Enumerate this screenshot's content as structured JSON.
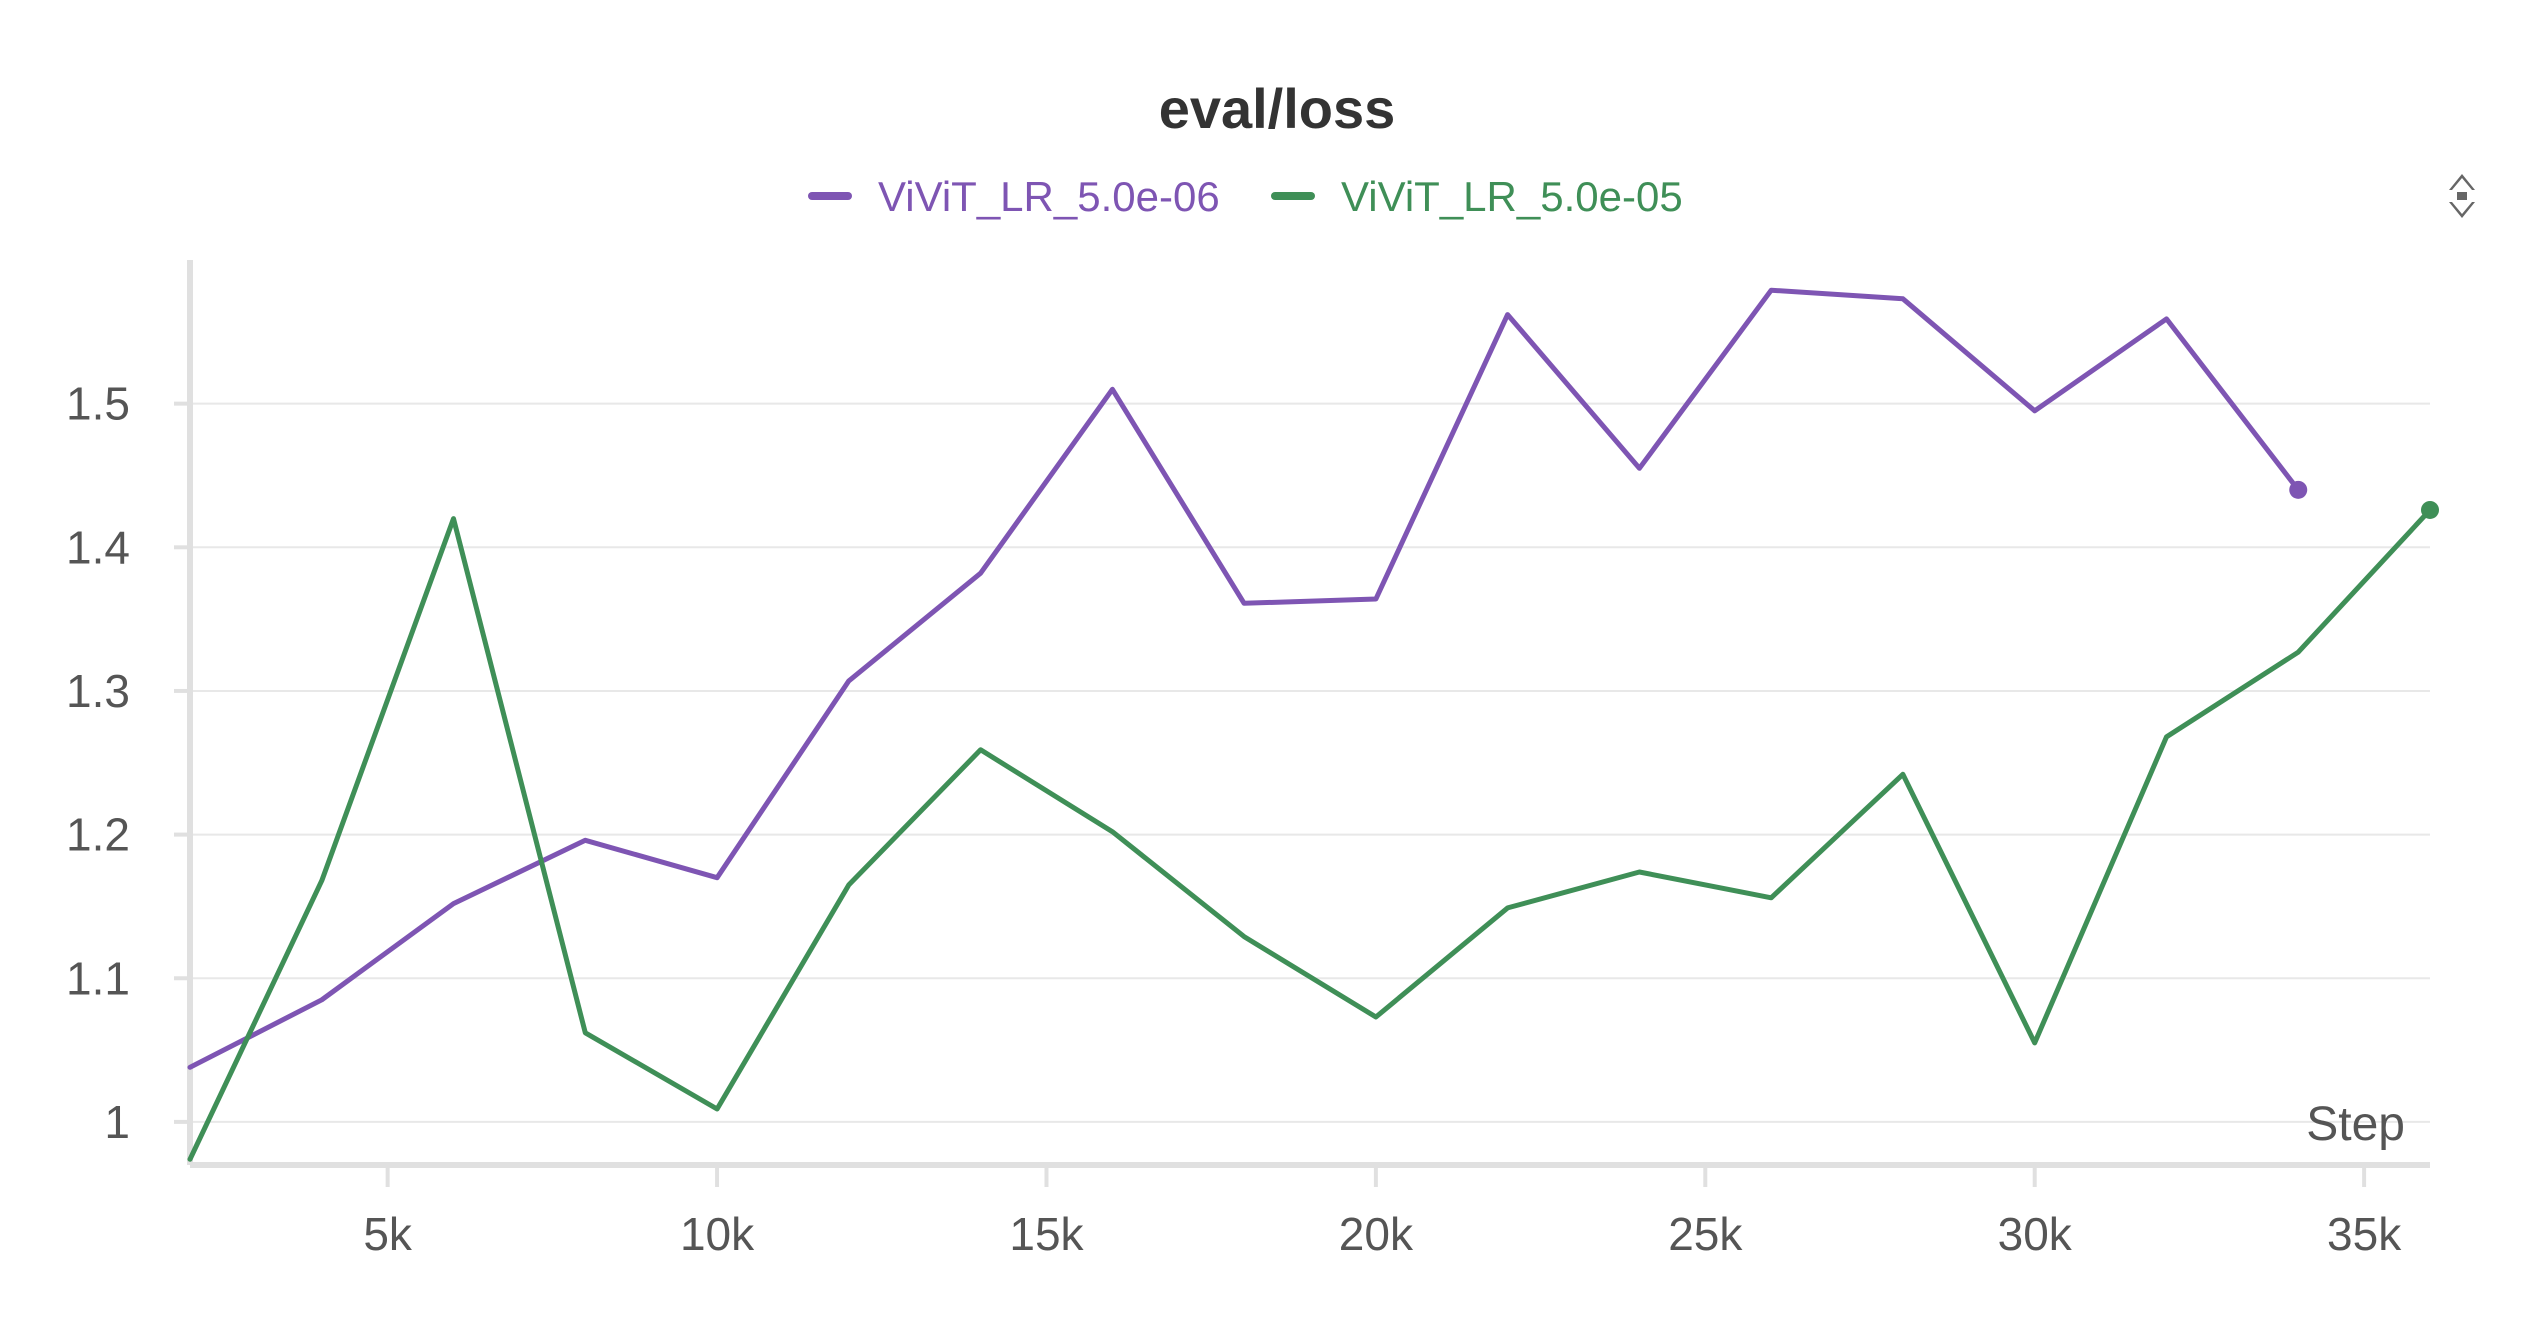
{
  "chart_data": {
    "type": "line",
    "title": "eval/loss",
    "xlabel": "Step",
    "ylabel": "",
    "xlim": [
      2000,
      36000
    ],
    "ylim": [
      0.97,
      1.6
    ],
    "x_ticks": [
      5000,
      10000,
      15000,
      20000,
      25000,
      30000,
      35000
    ],
    "x_tick_labels": [
      "5k",
      "10k",
      "15k",
      "20k",
      "25k",
      "30k",
      "35k"
    ],
    "y_ticks": [
      1.0,
      1.1,
      1.2,
      1.3,
      1.4,
      1.5
    ],
    "y_tick_labels": [
      "1",
      "1.1",
      "1.2",
      "1.3",
      "1.4",
      "1.5"
    ],
    "grid": true,
    "legend_position": "top-center",
    "series": [
      {
        "name": "ViViT_LR_5.0e-06",
        "color": "#7e55b3",
        "x": [
          2000,
          4000,
          6000,
          8000,
          10000,
          12000,
          14000,
          16000,
          18000,
          20000,
          22000,
          24000,
          26000,
          28000,
          30000,
          32000,
          34000
        ],
        "values": [
          1.038,
          1.085,
          1.152,
          1.196,
          1.17,
          1.307,
          1.382,
          1.51,
          1.361,
          1.364,
          1.562,
          1.455,
          1.579,
          1.573,
          1.495,
          1.559,
          1.44
        ]
      },
      {
        "name": "ViViT_LR_5.0e-05",
        "color": "#3f8f57",
        "x": [
          2000,
          4000,
          6000,
          8000,
          10000,
          12000,
          14000,
          16000,
          18000,
          20000,
          22000,
          24000,
          26000,
          28000,
          30000,
          32000,
          34000,
          36000
        ],
        "values": [
          0.974,
          1.168,
          1.42,
          1.062,
          1.009,
          1.165,
          1.259,
          1.202,
          1.129,
          1.073,
          1.149,
          1.174,
          1.156,
          1.242,
          1.055,
          1.268,
          1.327,
          1.426
        ]
      }
    ]
  }
}
